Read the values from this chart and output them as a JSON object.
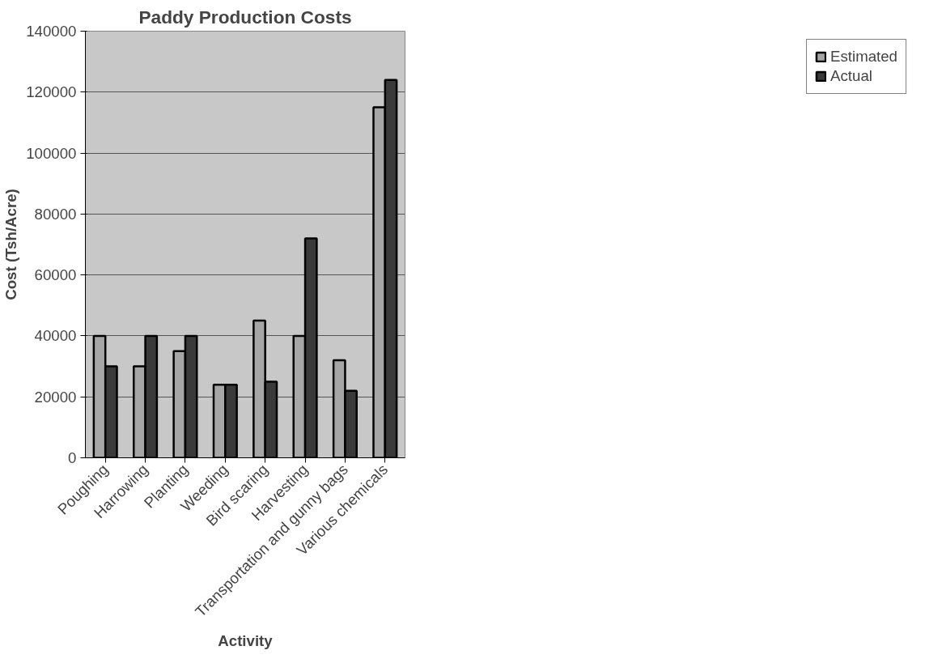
{
  "chart_data": {
    "type": "bar",
    "title": "Paddy Production Costs",
    "xlabel": "Activity",
    "ylabel": "Cost (Tsh/Acre)",
    "categories": [
      "Poughing",
      "Harrowing",
      "Planting",
      "Weeding",
      "Bird scaring",
      "Harvesting",
      "Transportation and gunny bags",
      "Various chemicals"
    ],
    "series": [
      {
        "name": "Estimated",
        "color": "#a6a6a6",
        "values": [
          40000,
          30000,
          35000,
          24000,
          45000,
          40000,
          32000,
          115000
        ]
      },
      {
        "name": "Actual",
        "color": "#3a3a3a",
        "values": [
          30000,
          40000,
          40000,
          24000,
          25000,
          72000,
          22000,
          124000
        ]
      }
    ],
    "ylim": [
      0,
      140000
    ],
    "yticks": [
      0,
      20000,
      40000,
      60000,
      80000,
      100000,
      120000,
      140000
    ],
    "grid": "y",
    "legend": "right"
  }
}
